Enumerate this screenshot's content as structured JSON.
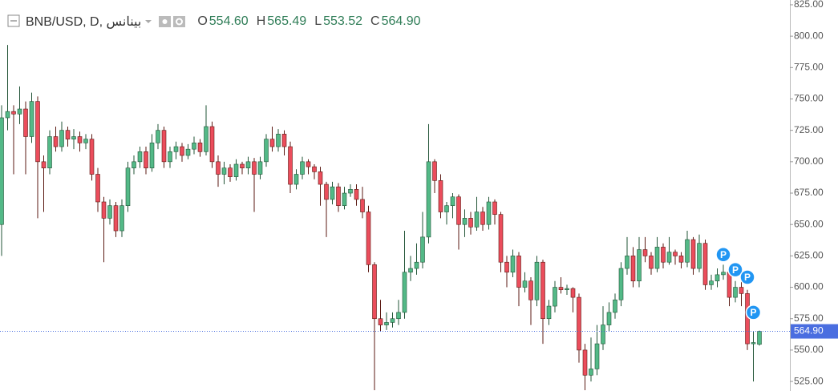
{
  "chart_data": {
    "type": "candlestick",
    "symbol": "BNB/USD, D, بينانس",
    "ohlc_legend": [
      {
        "key": "O",
        "label": "554.60"
      },
      {
        "key": "H",
        "label": "565.49"
      },
      {
        "key": "L",
        "label": "553.52"
      },
      {
        "key": "C",
        "label": "564.90"
      }
    ],
    "up_color": "#53b987",
    "down_color": "#eb4d5c",
    "ylim": [
      517.4,
      828.8
    ],
    "yticks": [
      {
        "value": 525,
        "label": "525.00"
      },
      {
        "value": 550,
        "label": "550.00"
      },
      {
        "value": 575,
        "label": "575.00"
      },
      {
        "value": 600,
        "label": "600.00"
      },
      {
        "value": 625,
        "label": "625.00"
      },
      {
        "value": 650,
        "label": "650.00"
      },
      {
        "value": 675,
        "label": "675.00"
      },
      {
        "value": 700,
        "label": "700.00"
      },
      {
        "value": 725,
        "label": "725.00"
      },
      {
        "value": 750,
        "label": "750.00"
      },
      {
        "value": 775,
        "label": "775.00"
      },
      {
        "value": 800,
        "label": "800.00"
      },
      {
        "value": 825,
        "label": "825.00"
      }
    ],
    "last_price": {
      "value": 564.9,
      "label": "564.90"
    },
    "markers": [
      {
        "candle": 120,
        "value": 626,
        "label": "P"
      },
      {
        "candle": 122,
        "value": 614,
        "label": "P"
      },
      {
        "candle": 124,
        "value": 608,
        "label": "P"
      },
      {
        "candle": 125,
        "value": 580,
        "label": "P"
      }
    ],
    "ohlc": [
      [
        650,
        745,
        625,
        735
      ],
      [
        735,
        793,
        725,
        740
      ],
      [
        740,
        745,
        690,
        738
      ],
      [
        738,
        760,
        730,
        742
      ],
      [
        742,
        748,
        690,
        720
      ],
      [
        720,
        755,
        715,
        748
      ],
      [
        748,
        752,
        655,
        700
      ],
      [
        700,
        705,
        660,
        695
      ],
      [
        695,
        725,
        690,
        720
      ],
      [
        720,
        728,
        708,
        712
      ],
      [
        712,
        732,
        708,
        725
      ],
      [
        725,
        728,
        712,
        718
      ],
      [
        718,
        726,
        710,
        720
      ],
      [
        720,
        724,
        708,
        715
      ],
      [
        715,
        722,
        710,
        718
      ],
      [
        718,
        722,
        685,
        690
      ],
      [
        690,
        695,
        660,
        668
      ],
      [
        668,
        672,
        620,
        655
      ],
      [
        655,
        670,
        650,
        665
      ],
      [
        665,
        668,
        640,
        645
      ],
      [
        645,
        670,
        640,
        665
      ],
      [
        665,
        700,
        660,
        695
      ],
      [
        695,
        705,
        690,
        700
      ],
      [
        700,
        712,
        695,
        708
      ],
      [
        708,
        712,
        690,
        695
      ],
      [
        695,
        722,
        692,
        715
      ],
      [
        715,
        730,
        710,
        725
      ],
      [
        725,
        728,
        695,
        700
      ],
      [
        700,
        712,
        695,
        708
      ],
      [
        708,
        716,
        702,
        712
      ],
      [
        712,
        715,
        700,
        705
      ],
      [
        705,
        714,
        702,
        710
      ],
      [
        710,
        720,
        706,
        715
      ],
      [
        715,
        718,
        704,
        708
      ],
      [
        708,
        745,
        705,
        728
      ],
      [
        728,
        732,
        695,
        700
      ],
      [
        700,
        705,
        680,
        690
      ],
      [
        690,
        700,
        682,
        695
      ],
      [
        695,
        698,
        684,
        688
      ],
      [
        688,
        702,
        685,
        698
      ],
      [
        698,
        700,
        690,
        695
      ],
      [
        695,
        704,
        690,
        700
      ],
      [
        700,
        703,
        660,
        690
      ],
      [
        690,
        704,
        686,
        700
      ],
      [
        700,
        722,
        696,
        718
      ],
      [
        718,
        728,
        708,
        712
      ],
      [
        712,
        726,
        708,
        722
      ],
      [
        722,
        725,
        705,
        712
      ],
      [
        712,
        716,
        675,
        682
      ],
      [
        682,
        694,
        678,
        690
      ],
      [
        690,
        704,
        686,
        700
      ],
      [
        700,
        702,
        690,
        696
      ],
      [
        696,
        698,
        686,
        692
      ],
      [
        692,
        696,
        665,
        682
      ],
      [
        682,
        684,
        640,
        670
      ],
      [
        670,
        684,
        666,
        680
      ],
      [
        680,
        683,
        660,
        665
      ],
      [
        665,
        680,
        662,
        675
      ],
      [
        675,
        682,
        672,
        678
      ],
      [
        678,
        682,
        665,
        670
      ],
      [
        670,
        680,
        655,
        660
      ],
      [
        660,
        665,
        612,
        618
      ],
      [
        618,
        620,
        518,
        575
      ],
      [
        575,
        590,
        565,
        570
      ],
      [
        570,
        580,
        566,
        572
      ],
      [
        572,
        580,
        568,
        575
      ],
      [
        575,
        590,
        570,
        580
      ],
      [
        580,
        645,
        575,
        612
      ],
      [
        612,
        625,
        605,
        615
      ],
      [
        615,
        635,
        610,
        620
      ],
      [
        620,
        660,
        615,
        640
      ],
      [
        640,
        730,
        635,
        700
      ],
      [
        700,
        702,
        675,
        685
      ],
      [
        685,
        690,
        655,
        660
      ],
      [
        660,
        668,
        650,
        665
      ],
      [
        665,
        675,
        655,
        672
      ],
      [
        672,
        674,
        630,
        650
      ],
      [
        650,
        662,
        640,
        655
      ],
      [
        655,
        660,
        642,
        648
      ],
      [
        648,
        672,
        645,
        660
      ],
      [
        660,
        664,
        645,
        650
      ],
      [
        650,
        672,
        646,
        668
      ],
      [
        668,
        670,
        650,
        658
      ],
      [
        658,
        660,
        612,
        620
      ],
      [
        620,
        625,
        600,
        612
      ],
      [
        612,
        630,
        608,
        625
      ],
      [
        625,
        628,
        585,
        600
      ],
      [
        600,
        612,
        596,
        605
      ],
      [
        605,
        608,
        570,
        590
      ],
      [
        590,
        625,
        585,
        620
      ],
      [
        620,
        622,
        555,
        575
      ],
      [
        575,
        590,
        570,
        585
      ],
      [
        585,
        605,
        580,
        600
      ],
      [
        600,
        608,
        595,
        598
      ],
      [
        598,
        602,
        594,
        599
      ],
      [
        599,
        600,
        580,
        592
      ],
      [
        592,
        595,
        540,
        550
      ],
      [
        550,
        555,
        518,
        530
      ],
      [
        530,
        560,
        525,
        535
      ],
      [
        535,
        570,
        530,
        555
      ],
      [
        555,
        585,
        550,
        570
      ],
      [
        570,
        588,
        565,
        580
      ],
      [
        580,
        595,
        575,
        590
      ],
      [
        590,
        620,
        585,
        615
      ],
      [
        615,
        640,
        610,
        625
      ],
      [
        625,
        632,
        600,
        605
      ],
      [
        605,
        640,
        600,
        630
      ],
      [
        630,
        640,
        620,
        625
      ],
      [
        625,
        628,
        610,
        615
      ],
      [
        615,
        640,
        612,
        632
      ],
      [
        632,
        635,
        615,
        620
      ],
      [
        620,
        640,
        618,
        628
      ],
      [
        628,
        630,
        618,
        625
      ],
      [
        625,
        628,
        615,
        620
      ],
      [
        620,
        645,
        616,
        638
      ],
      [
        638,
        640,
        610,
        615
      ],
      [
        615,
        642,
        612,
        635
      ],
      [
        635,
        638,
        598,
        602
      ],
      [
        602,
        610,
        598,
        605
      ],
      [
        605,
        615,
        600,
        610
      ],
      [
        610,
        618,
        606,
        612
      ],
      [
        612,
        615,
        585,
        592
      ],
      [
        592,
        605,
        588,
        600
      ],
      [
        600,
        605,
        585,
        595
      ],
      [
        595,
        598,
        550,
        555
      ],
      [
        555,
        565,
        525,
        556
      ],
      [
        554.6,
        565.49,
        553.52,
        564.9
      ]
    ]
  }
}
